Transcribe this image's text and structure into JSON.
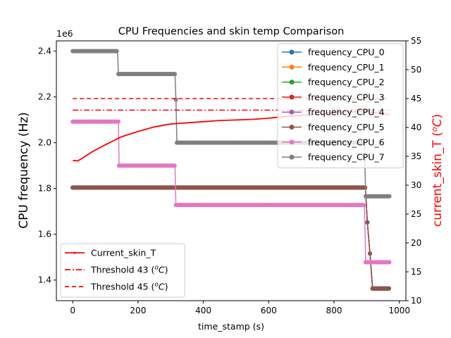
{
  "chart_data": {
    "type": "line",
    "title": "CPU Frequencies and skin temp Comparison",
    "xlabel": "time_stamp (s)",
    "ylabel": "CPU frequency (Hz)",
    "y2label_main": "current_skin_T (",
    "y2label_sup": "o",
    "y2label_unit": "C",
    "y2label_close": ")",
    "y_offset_text": "1e6",
    "xlim": [
      -50,
      1020
    ],
    "ylim": [
      1.31,
      2.445
    ],
    "y2lim": [
      10,
      55
    ],
    "x_ticks": [
      0,
      200,
      400,
      600,
      800,
      1000
    ],
    "y_ticks": [
      1.4,
      1.6,
      1.8,
      2.0,
      2.2,
      2.4
    ],
    "y_tick_labels": [
      "1.4",
      "1.6",
      "1.8",
      "2.0",
      "2.2",
      "2.4"
    ],
    "y2_ticks": [
      10,
      15,
      20,
      25,
      30,
      35,
      40,
      45,
      50,
      55
    ],
    "freq_series": [
      {
        "name": "frequency_CPU_0",
        "color": "#1f77b4",
        "points": [
          [
            0,
            1.804
          ],
          [
            896,
            1.804
          ],
          [
            902,
            1.652
          ],
          [
            910,
            1.516
          ],
          [
            918,
            1.363
          ],
          [
            970,
            1.363
          ]
        ]
      },
      {
        "name": "frequency_CPU_1",
        "color": "#ff7f0e",
        "points": [
          [
            0,
            1.804
          ],
          [
            896,
            1.804
          ],
          [
            902,
            1.652
          ],
          [
            910,
            1.516
          ],
          [
            918,
            1.363
          ],
          [
            970,
            1.363
          ]
        ]
      },
      {
        "name": "frequency_CPU_2",
        "color": "#2ca02c",
        "points": [
          [
            0,
            1.804
          ],
          [
            896,
            1.804
          ],
          [
            902,
            1.652
          ],
          [
            910,
            1.516
          ],
          [
            918,
            1.363
          ],
          [
            970,
            1.363
          ]
        ]
      },
      {
        "name": "frequency_CPU_3",
        "color": "#d62728",
        "points": [
          [
            0,
            1.804
          ],
          [
            896,
            1.804
          ],
          [
            902,
            1.652
          ],
          [
            910,
            1.516
          ],
          [
            918,
            1.363
          ],
          [
            970,
            1.363
          ]
        ]
      },
      {
        "name": "frequency_CPU_4",
        "color": "#9467bd",
        "points": [
          [
            0,
            1.804
          ],
          [
            896,
            1.804
          ],
          [
            902,
            1.652
          ],
          [
            910,
            1.516
          ],
          [
            918,
            1.363
          ],
          [
            970,
            1.363
          ]
        ]
      },
      {
        "name": "frequency_CPU_5",
        "color": "#8c564b",
        "points": [
          [
            0,
            1.804
          ],
          [
            896,
            1.804
          ],
          [
            902,
            1.652
          ],
          [
            910,
            1.516
          ],
          [
            918,
            1.363
          ],
          [
            970,
            1.363
          ]
        ]
      },
      {
        "name": "frequency_CPU_6",
        "color": "#e377c2",
        "points": [
          [
            0,
            2.092
          ],
          [
            140,
            2.092
          ],
          [
            142,
            1.9
          ],
          [
            313,
            1.9
          ],
          [
            316,
            1.728
          ],
          [
            893,
            1.728
          ],
          [
            897,
            1.478
          ],
          [
            970,
            1.478
          ]
        ]
      },
      {
        "name": "frequency_CPU_7",
        "color": "#7f7f7f",
        "points": [
          [
            0,
            2.4
          ],
          [
            137,
            2.4
          ],
          [
            140,
            2.3
          ],
          [
            313,
            2.3
          ],
          [
            316,
            2.188
          ],
          [
            319,
            2.0
          ],
          [
            893,
            2.0
          ],
          [
            897,
            1.766
          ],
          [
            970,
            1.766
          ]
        ]
      }
    ],
    "temp_series": {
      "name": "Current_skin_T",
      "color": "#ff0000",
      "points": [
        [
          0,
          34.3
        ],
        [
          15,
          34.2
        ],
        [
          30,
          34.7
        ],
        [
          60,
          35.8
        ],
        [
          100,
          37.0
        ],
        [
          150,
          38.4
        ],
        [
          200,
          39.3
        ],
        [
          250,
          40.1
        ],
        [
          300,
          40.6
        ],
        [
          350,
          40.8
        ],
        [
          400,
          41.0
        ],
        [
          450,
          41.2
        ],
        [
          500,
          41.3
        ],
        [
          550,
          41.4
        ],
        [
          600,
          41.6
        ],
        [
          650,
          41.9
        ],
        [
          700,
          42.1
        ],
        [
          750,
          42.3
        ],
        [
          800,
          42.6
        ],
        [
          850,
          42.7
        ],
        [
          900,
          42.8
        ],
        [
          940,
          42.4
        ],
        [
          970,
          42.2
        ]
      ]
    },
    "thresholds": [
      {
        "name": "Threshold 43",
        "unit_prefix": "(",
        "unit_sup": "o",
        "unit_main": "C)",
        "value": 43,
        "dash": "8,3,2,3",
        "color": "#ff0000"
      },
      {
        "name": "Threshold 45",
        "unit_prefix": "(",
        "unit_sup": "o",
        "unit_main": "C)",
        "value": 45,
        "dash": "6,4",
        "color": "#ff0000"
      }
    ],
    "threshold_xrange": [
      0,
      970
    ],
    "legend_freq_position": "top-right",
    "legend_temp_position": "bottom-left",
    "grid": false
  }
}
